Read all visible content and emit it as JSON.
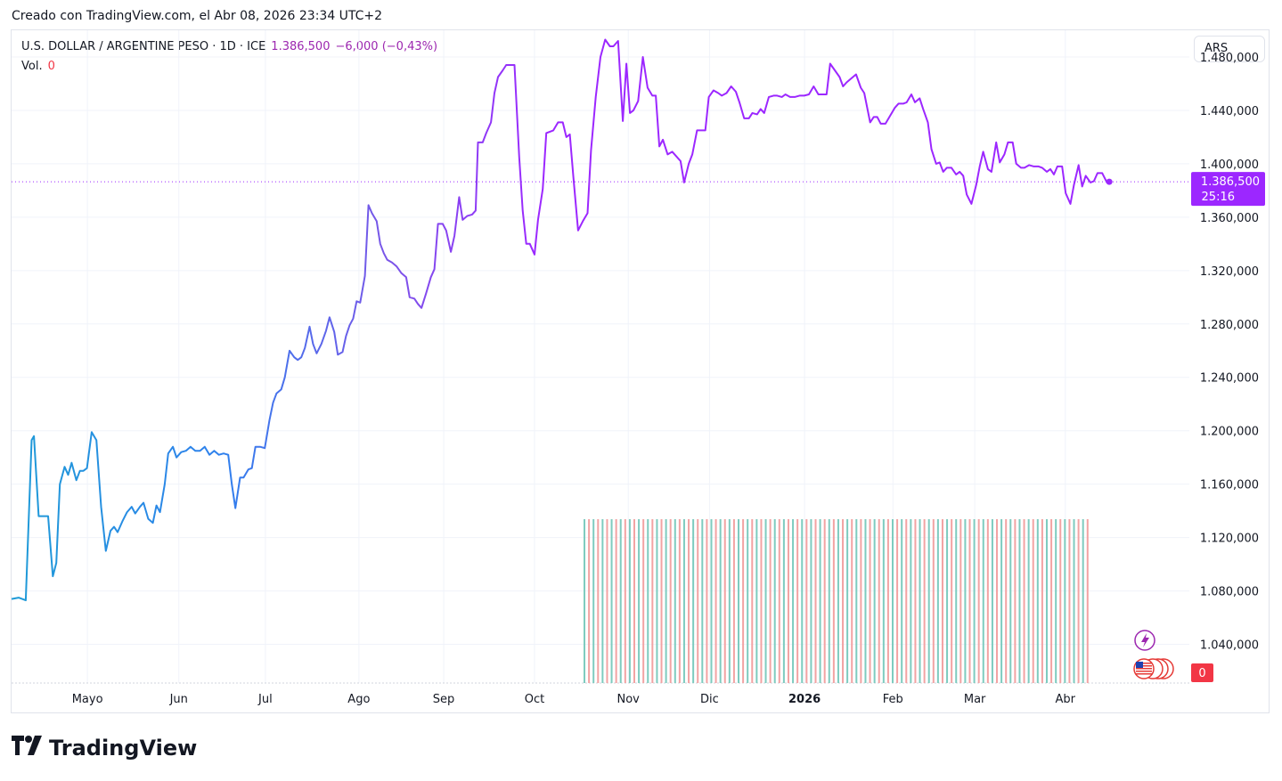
{
  "header": {
    "created": "Creado con TradingView.com, el Abr 08, 2026 23:34 UTC+2"
  },
  "legend": {
    "symbol": "U.S. DOLLAR / ARGENTINE PESO · 1D · ICE",
    "price": "1.386,500",
    "change": "−6,000 (−0,43%)",
    "vol_label": "Vol.",
    "vol_value": "0"
  },
  "currency_button": "ARS",
  "brand": {
    "name": "TradingView"
  },
  "colors": {
    "line_blue": "#2f80ed",
    "line_purple": "#9c27ff",
    "vol_green": "#7ecbbf",
    "vol_red": "#f2a3a3",
    "price_label": "#9c27ff",
    "zero_label": "#f23645"
  },
  "chart_data": {
    "type": "line",
    "title": "U.S. DOLLAR / ARGENTINE PESO · 1D · ICE",
    "ylabel": "ARS",
    "ylim": [
      1011000,
      1500000
    ],
    "x_range": [
      0,
      1.0
    ],
    "y_ticks": [
      {
        "value": 1480000,
        "label": "1.480,000"
      },
      {
        "value": 1440000,
        "label": "1.440,000"
      },
      {
        "value": 1400000,
        "label": "1.400,000"
      },
      {
        "value": 1360000,
        "label": "1.360,000"
      },
      {
        "value": 1320000,
        "label": "1.320,000"
      },
      {
        "value": 1280000,
        "label": "1.280,000"
      },
      {
        "value": 1240000,
        "label": "1.240,000"
      },
      {
        "value": 1200000,
        "label": "1.200,000"
      },
      {
        "value": 1160000,
        "label": "1.160,000"
      },
      {
        "value": 1120000,
        "label": "1.120,000"
      },
      {
        "value": 1080000,
        "label": "1.080,000"
      },
      {
        "value": 1040000,
        "label": "1.040,000"
      }
    ],
    "x_ticks": [
      {
        "pos": 0.0644,
        "label": "Mayo",
        "bold": false
      },
      {
        "pos": 0.142,
        "label": "Jun",
        "bold": false
      },
      {
        "pos": 0.2155,
        "label": "Jul",
        "bold": false
      },
      {
        "pos": 0.2949,
        "label": "Ago",
        "bold": false
      },
      {
        "pos": 0.3669,
        "label": "Sep",
        "bold": false
      },
      {
        "pos": 0.444,
        "label": "Oct",
        "bold": false
      },
      {
        "pos": 0.5236,
        "label": "Nov",
        "bold": false
      },
      {
        "pos": 0.5926,
        "label": "Dic",
        "bold": false
      },
      {
        "pos": 0.6733,
        "label": "2026",
        "bold": true
      },
      {
        "pos": 0.7483,
        "label": "Feb",
        "bold": false
      },
      {
        "pos": 0.8178,
        "label": "Mar",
        "bold": false
      },
      {
        "pos": 0.8947,
        "label": "Abr",
        "bold": false
      }
    ],
    "last_price": {
      "value": 1386500,
      "label": "1.386,500",
      "countdown": "25:16"
    },
    "volume_zero_label": "0",
    "volume_start": 0.4864,
    "volume_end": 0.9136,
    "volume_bars": 112,
    "series": [
      {
        "name": "USD/ARS",
        "points": [
          [
            0.0,
            1074000
          ],
          [
            0.006,
            1075000
          ],
          [
            0.012,
            1073000
          ],
          [
            0.017,
            1193000
          ],
          [
            0.019,
            1196000
          ],
          [
            0.023,
            1136000
          ],
          [
            0.031,
            1136000
          ],
          [
            0.035,
            1091000
          ],
          [
            0.038,
            1101000
          ],
          [
            0.041,
            1160000
          ],
          [
            0.045,
            1173000
          ],
          [
            0.048,
            1167000
          ],
          [
            0.051,
            1176000
          ],
          [
            0.055,
            1163000
          ],
          [
            0.058,
            1170000
          ],
          [
            0.061,
            1170000
          ],
          [
            0.064,
            1172000
          ],
          [
            0.068,
            1199000
          ],
          [
            0.072,
            1193000
          ],
          [
            0.076,
            1143000
          ],
          [
            0.08,
            1110000
          ],
          [
            0.084,
            1125000
          ],
          [
            0.087,
            1128000
          ],
          [
            0.09,
            1124000
          ],
          [
            0.094,
            1132000
          ],
          [
            0.098,
            1139000
          ],
          [
            0.102,
            1143000
          ],
          [
            0.105,
            1138000
          ],
          [
            0.109,
            1143000
          ],
          [
            0.112,
            1146000
          ],
          [
            0.116,
            1134000
          ],
          [
            0.12,
            1131000
          ],
          [
            0.123,
            1144000
          ],
          [
            0.126,
            1139000
          ],
          [
            0.13,
            1160000
          ],
          [
            0.133,
            1183000
          ],
          [
            0.137,
            1188000
          ],
          [
            0.14,
            1180000
          ],
          [
            0.144,
            1184000
          ],
          [
            0.148,
            1185000
          ],
          [
            0.152,
            1188000
          ],
          [
            0.156,
            1185000
          ],
          [
            0.16,
            1185000
          ],
          [
            0.164,
            1188000
          ],
          [
            0.168,
            1182000
          ],
          [
            0.172,
            1185000
          ],
          [
            0.176,
            1182000
          ],
          [
            0.18,
            1183000
          ],
          [
            0.184,
            1182000
          ],
          [
            0.187,
            1160000
          ],
          [
            0.19,
            1142000
          ],
          [
            0.194,
            1165000
          ],
          [
            0.197,
            1165000
          ],
          [
            0.201,
            1171000
          ],
          [
            0.204,
            1172000
          ],
          [
            0.207,
            1188000
          ],
          [
            0.211,
            1188000
          ],
          [
            0.215,
            1187000
          ],
          [
            0.219,
            1208000
          ],
          [
            0.222,
            1221000
          ],
          [
            0.225,
            1228000
          ],
          [
            0.229,
            1231000
          ],
          [
            0.232,
            1240000
          ],
          [
            0.236,
            1260000
          ],
          [
            0.24,
            1255000
          ],
          [
            0.243,
            1253000
          ],
          [
            0.246,
            1255000
          ],
          [
            0.249,
            1262000
          ],
          [
            0.253,
            1278000
          ],
          [
            0.256,
            1265000
          ],
          [
            0.259,
            1258000
          ],
          [
            0.263,
            1265000
          ],
          [
            0.267,
            1275000
          ],
          [
            0.27,
            1285000
          ],
          [
            0.274,
            1274000
          ],
          [
            0.277,
            1257000
          ],
          [
            0.281,
            1259000
          ],
          [
            0.284,
            1271000
          ],
          [
            0.287,
            1279000
          ],
          [
            0.29,
            1284000
          ],
          [
            0.293,
            1297000
          ],
          [
            0.296,
            1296000
          ],
          [
            0.3,
            1316000
          ],
          [
            0.303,
            1369000
          ],
          [
            0.306,
            1363000
          ],
          [
            0.31,
            1357000
          ],
          [
            0.313,
            1340000
          ],
          [
            0.316,
            1333000
          ],
          [
            0.319,
            1328000
          ],
          [
            0.323,
            1326000
          ],
          [
            0.327,
            1323000
          ],
          [
            0.331,
            1318000
          ],
          [
            0.335,
            1315000
          ],
          [
            0.338,
            1300000
          ],
          [
            0.342,
            1299000
          ],
          [
            0.345,
            1295000
          ],
          [
            0.348,
            1292000
          ],
          [
            0.352,
            1303000
          ],
          [
            0.356,
            1315000
          ],
          [
            0.359,
            1321000
          ],
          [
            0.362,
            1355000
          ],
          [
            0.366,
            1355000
          ],
          [
            0.369,
            1350000
          ],
          [
            0.373,
            1334000
          ],
          [
            0.376,
            1346000
          ],
          [
            0.38,
            1375000
          ],
          [
            0.383,
            1358000
          ],
          [
            0.387,
            1361000
          ],
          [
            0.391,
            1362000
          ],
          [
            0.394,
            1365000
          ],
          [
            0.396,
            1416000
          ],
          [
            0.4,
            1416000
          ],
          [
            0.403,
            1423000
          ],
          [
            0.407,
            1431000
          ],
          [
            0.41,
            1453000
          ],
          [
            0.413,
            1465000
          ],
          [
            0.417,
            1470000
          ],
          [
            0.42,
            1474000
          ],
          [
            0.424,
            1474000
          ],
          [
            0.427,
            1474000
          ],
          [
            0.431,
            1405000
          ],
          [
            0.434,
            1365000
          ],
          [
            0.437,
            1340000
          ],
          [
            0.44,
            1340000
          ],
          [
            0.444,
            1332000
          ],
          [
            0.447,
            1358000
          ],
          [
            0.451,
            1381000
          ],
          [
            0.454,
            1423000
          ],
          [
            0.457,
            1424000
          ],
          [
            0.46,
            1425000
          ],
          [
            0.464,
            1431000
          ],
          [
            0.468,
            1431000
          ],
          [
            0.471,
            1420000
          ],
          [
            0.474,
            1422000
          ],
          [
            0.477,
            1390000
          ],
          [
            0.481,
            1350000
          ],
          [
            0.485,
            1357000
          ],
          [
            0.489,
            1363000
          ],
          [
            0.492,
            1410000
          ],
          [
            0.496,
            1450000
          ],
          [
            0.5,
            1480000
          ],
          [
            0.504,
            1493000
          ],
          [
            0.508,
            1488000
          ],
          [
            0.511,
            1488000
          ],
          [
            0.515,
            1492000
          ],
          [
            0.519,
            1432000
          ],
          [
            0.522,
            1475000
          ],
          [
            0.525,
            1438000
          ],
          [
            0.528,
            1440000
          ],
          [
            0.532,
            1447000
          ],
          [
            0.536,
            1480000
          ],
          [
            0.54,
            1457000
          ],
          [
            0.544,
            1451000
          ],
          [
            0.547,
            1451000
          ],
          [
            0.55,
            1413000
          ],
          [
            0.553,
            1418000
          ],
          [
            0.557,
            1407000
          ],
          [
            0.561,
            1409000
          ],
          [
            0.564,
            1406000
          ],
          [
            0.568,
            1402000
          ],
          [
            0.571,
            1386000
          ],
          [
            0.575,
            1400000
          ],
          [
            0.578,
            1407000
          ],
          [
            0.582,
            1425000
          ],
          [
            0.586,
            1425000
          ],
          [
            0.589,
            1425000
          ],
          [
            0.592,
            1450000
          ],
          [
            0.596,
            1455000
          ],
          [
            0.6,
            1453000
          ],
          [
            0.603,
            1451000
          ],
          [
            0.607,
            1453000
          ],
          [
            0.611,
            1458000
          ],
          [
            0.615,
            1454000
          ],
          [
            0.618,
            1446000
          ],
          [
            0.622,
            1434000
          ],
          [
            0.626,
            1434000
          ],
          [
            0.629,
            1438000
          ],
          [
            0.633,
            1437000
          ],
          [
            0.636,
            1441000
          ],
          [
            0.639,
            1438000
          ],
          [
            0.643,
            1450000
          ],
          [
            0.647,
            1451000
          ],
          [
            0.65,
            1451000
          ],
          [
            0.654,
            1450000
          ],
          [
            0.657,
            1452000
          ],
          [
            0.661,
            1450000
          ],
          [
            0.665,
            1450000
          ],
          [
            0.669,
            1451000
          ],
          [
            0.673,
            1451000
          ],
          [
            0.677,
            1452000
          ],
          [
            0.681,
            1458000
          ],
          [
            0.685,
            1452000
          ],
          [
            0.689,
            1452000
          ],
          [
            0.692,
            1452000
          ],
          [
            0.695,
            1475000
          ],
          [
            0.699,
            1470000
          ],
          [
            0.703,
            1465000
          ],
          [
            0.706,
            1458000
          ],
          [
            0.709,
            1461000
          ],
          [
            0.713,
            1464000
          ],
          [
            0.717,
            1467000
          ],
          [
            0.721,
            1457000
          ],
          [
            0.724,
            1453000
          ],
          [
            0.729,
            1431000
          ],
          [
            0.732,
            1435000
          ],
          [
            0.735,
            1435000
          ],
          [
            0.738,
            1430000
          ],
          [
            0.742,
            1430000
          ],
          [
            0.746,
            1436000
          ],
          [
            0.75,
            1442000
          ],
          [
            0.753,
            1445000
          ],
          [
            0.757,
            1445000
          ],
          [
            0.76,
            1446000
          ],
          [
            0.764,
            1452000
          ],
          [
            0.767,
            1446000
          ],
          [
            0.771,
            1449000
          ],
          [
            0.774,
            1441000
          ],
          [
            0.778,
            1431000
          ],
          [
            0.781,
            1411000
          ],
          [
            0.785,
            1400000
          ],
          [
            0.788,
            1401000
          ],
          [
            0.791,
            1394000
          ],
          [
            0.794,
            1397000
          ],
          [
            0.798,
            1397000
          ],
          [
            0.802,
            1392000
          ],
          [
            0.805,
            1394000
          ],
          [
            0.808,
            1391000
          ],
          [
            0.811,
            1377000
          ],
          [
            0.815,
            1370000
          ],
          [
            0.819,
            1384000
          ],
          [
            0.822,
            1398000
          ],
          [
            0.825,
            1409000
          ],
          [
            0.829,
            1396000
          ],
          [
            0.832,
            1394000
          ],
          [
            0.836,
            1416000
          ],
          [
            0.839,
            1401000
          ],
          [
            0.843,
            1407000
          ],
          [
            0.846,
            1416000
          ],
          [
            0.85,
            1416000
          ],
          [
            0.853,
            1400000
          ],
          [
            0.857,
            1397000
          ],
          [
            0.86,
            1397000
          ],
          [
            0.864,
            1399000
          ],
          [
            0.868,
            1398000
          ],
          [
            0.872,
            1398000
          ],
          [
            0.875,
            1397000
          ],
          [
            0.879,
            1394000
          ],
          [
            0.882,
            1396000
          ],
          [
            0.885,
            1392000
          ],
          [
            0.888,
            1398000
          ],
          [
            0.892,
            1398000
          ],
          [
            0.895,
            1378000
          ],
          [
            0.899,
            1370000
          ],
          [
            0.902,
            1384000
          ],
          [
            0.906,
            1399000
          ],
          [
            0.909,
            1383000
          ],
          [
            0.912,
            1391000
          ],
          [
            0.916,
            1386000
          ],
          [
            0.919,
            1387000
          ],
          [
            0.922,
            1393000
          ],
          [
            0.926,
            1393000
          ],
          [
            0.93,
            1386000
          ],
          [
            0.932,
            1386500
          ]
        ]
      }
    ]
  }
}
